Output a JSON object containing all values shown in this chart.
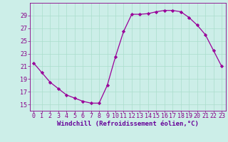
{
  "x": [
    0,
    1,
    2,
    3,
    4,
    5,
    6,
    7,
    8,
    9,
    10,
    11,
    12,
    13,
    14,
    15,
    16,
    17,
    18,
    19,
    20,
    21,
    22,
    23
  ],
  "y": [
    21.5,
    20.0,
    18.5,
    17.5,
    16.5,
    16.0,
    15.5,
    15.2,
    15.2,
    18.0,
    22.5,
    26.5,
    29.2,
    29.2,
    29.3,
    29.6,
    29.8,
    29.8,
    29.6,
    28.7,
    27.5,
    26.0,
    23.5,
    21.0
  ],
  "line_color": "#990099",
  "marker": "D",
  "marker_size": 2.2,
  "bg_color": "#cceee8",
  "grid_color": "#aaddcc",
  "xlabel": "Windchill (Refroidissement éolien,°C)",
  "xlabel_color": "#660099",
  "xlabel_fontsize": 6.5,
  "tick_color": "#880088",
  "tick_fontsize": 6,
  "ylim": [
    14,
    31
  ],
  "yticks": [
    15,
    17,
    19,
    21,
    23,
    25,
    27,
    29
  ],
  "xlim": [
    -0.5,
    23.5
  ],
  "xticks": [
    0,
    1,
    2,
    3,
    4,
    5,
    6,
    7,
    8,
    9,
    10,
    11,
    12,
    13,
    14,
    15,
    16,
    17,
    18,
    19,
    20,
    21,
    22,
    23
  ]
}
